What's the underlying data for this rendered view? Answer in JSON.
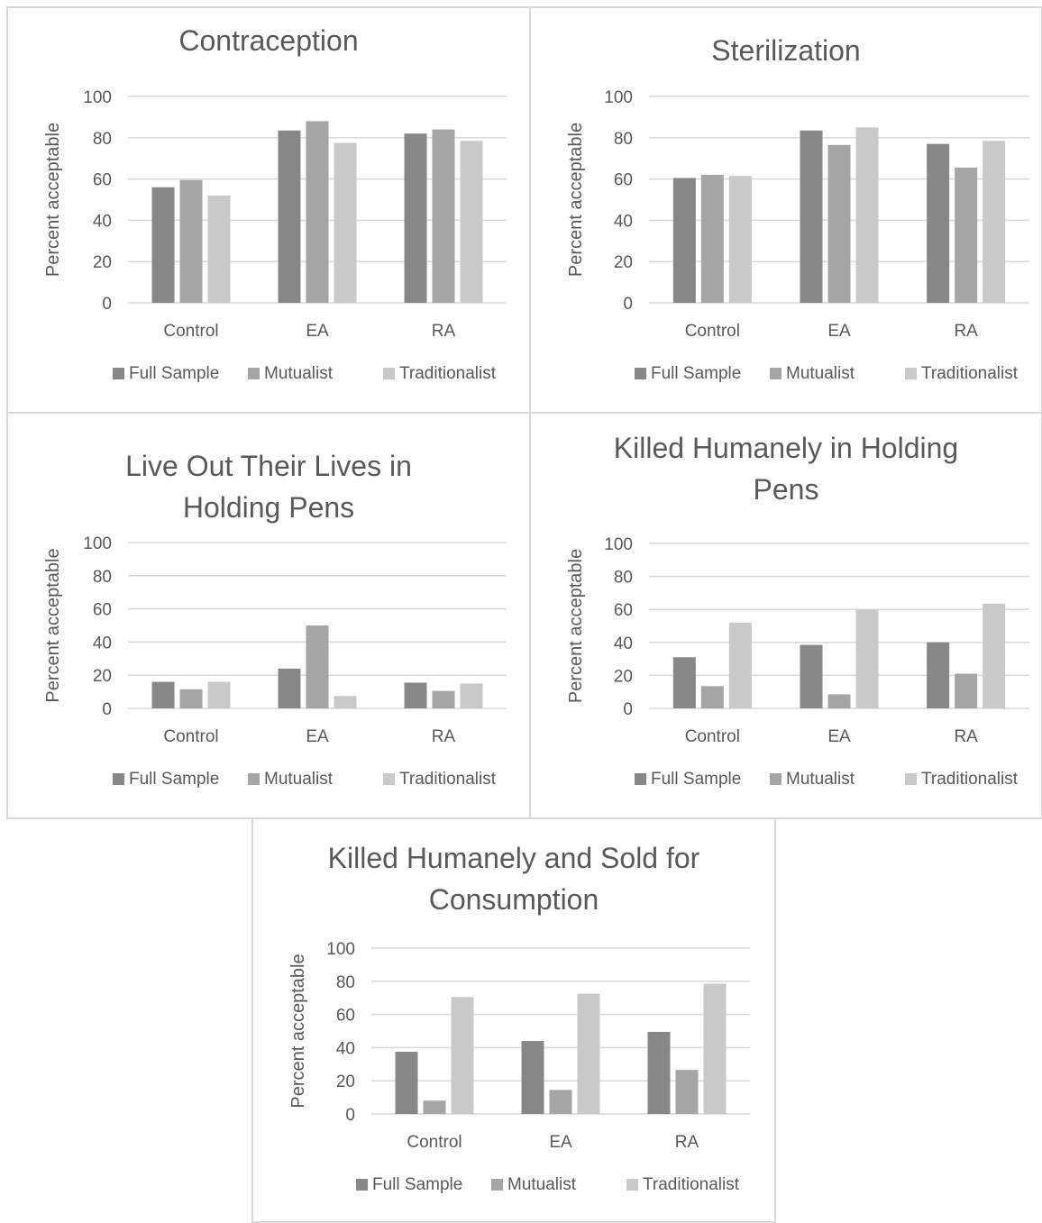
{
  "colors": {
    "full_sample": "#878787",
    "mutualist": "#a5a5a5",
    "traditionalist": "#c9c9c9",
    "gridline": "#d9d9d9",
    "text": "#595959"
  },
  "chart_data": [
    {
      "type": "bar",
      "title": "Contraception",
      "title_lines": [
        "Contraception"
      ],
      "ylabel": "Percent acceptable",
      "xlabel": "",
      "categories": [
        "Control",
        "EA",
        "RA"
      ],
      "ylim": [
        0,
        100
      ],
      "yticks": [
        0,
        20,
        40,
        60,
        80,
        100
      ],
      "grid": true,
      "legend_position": "bottom",
      "series": [
        {
          "name": "Full Sample",
          "values": [
            56,
            83.5,
            82
          ]
        },
        {
          "name": "Mutualist",
          "values": [
            59.5,
            88,
            84
          ]
        },
        {
          "name": "Traditionalist",
          "values": [
            52,
            77.5,
            78.5
          ]
        }
      ]
    },
    {
      "type": "bar",
      "title": "Sterilization",
      "title_lines": [
        "Sterilization"
      ],
      "ylabel": "Percent acceptable",
      "xlabel": "",
      "categories": [
        "Control",
        "EA",
        "RA"
      ],
      "ylim": [
        0,
        100
      ],
      "yticks": [
        0,
        20,
        40,
        60,
        80,
        100
      ],
      "grid": true,
      "legend_position": "bottom",
      "series": [
        {
          "name": "Full Sample",
          "values": [
            60.5,
            83.5,
            77
          ]
        },
        {
          "name": "Mutualist",
          "values": [
            62,
            76.5,
            65.5
          ]
        },
        {
          "name": "Traditionalist",
          "values": [
            61.5,
            85,
            78.5
          ]
        }
      ]
    },
    {
      "type": "bar",
      "title": "Live Out Their Lives in Holding Pens",
      "title_lines": [
        "Live Out Their Lives in",
        "Holding Pens"
      ],
      "ylabel": "Percent acceptable",
      "xlabel": "",
      "categories": [
        "Control",
        "EA",
        "RA"
      ],
      "ylim": [
        0,
        100
      ],
      "yticks": [
        0,
        20,
        40,
        60,
        80,
        100
      ],
      "grid": true,
      "legend_position": "bottom",
      "series": [
        {
          "name": "Full Sample",
          "values": [
            16,
            24,
            15.5
          ]
        },
        {
          "name": "Mutualist",
          "values": [
            11.5,
            50,
            10.5
          ]
        },
        {
          "name": "Traditionalist",
          "values": [
            16,
            7.5,
            15
          ]
        }
      ]
    },
    {
      "type": "bar",
      "title": "Killed Humanely in Holding Pens",
      "title_lines": [
        "Killed Humanely in Holding",
        "Pens"
      ],
      "ylabel": "Percent acceptable",
      "xlabel": "",
      "categories": [
        "Control",
        "EA",
        "RA"
      ],
      "ylim": [
        0,
        100
      ],
      "yticks": [
        0,
        20,
        40,
        60,
        80,
        100
      ],
      "grid": true,
      "legend_position": "bottom",
      "series": [
        {
          "name": "Full Sample",
          "values": [
            31,
            38.5,
            40
          ]
        },
        {
          "name": "Mutualist",
          "values": [
            13.5,
            8.5,
            21
          ]
        },
        {
          "name": "Traditionalist",
          "values": [
            52,
            60,
            63.5
          ]
        }
      ]
    },
    {
      "type": "bar",
      "title": "Killed Humanely and Sold for Consumption",
      "title_lines": [
        "Killed Humanely and Sold for",
        "Consumption"
      ],
      "ylabel": "Percent acceptable",
      "xlabel": "",
      "categories": [
        "Control",
        "EA",
        "RA"
      ],
      "ylim": [
        0,
        100
      ],
      "yticks": [
        0,
        20,
        40,
        60,
        80,
        100
      ],
      "grid": true,
      "legend_position": "bottom",
      "series": [
        {
          "name": "Full Sample",
          "values": [
            37.5,
            44,
            49.5
          ]
        },
        {
          "name": "Mutualist",
          "values": [
            8,
            14.5,
            26.5
          ]
        },
        {
          "name": "Traditionalist",
          "values": [
            70.5,
            72.5,
            78.5
          ]
        }
      ]
    }
  ]
}
